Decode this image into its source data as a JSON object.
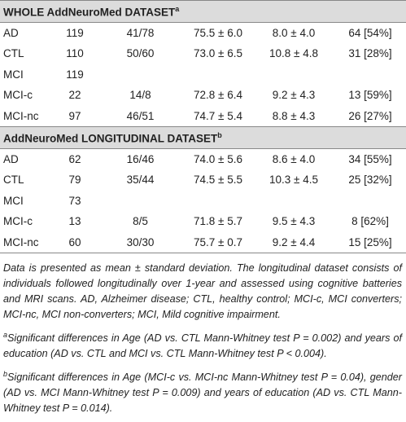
{
  "table": {
    "sections": [
      {
        "title": "WHOLE AddNeuroMed DATASET",
        "sup": "a",
        "rows": [
          [
            "AD",
            "119",
            "41/78",
            "75.5 ± 6.0",
            "8.0 ± 4.0",
            "64 [54%]"
          ],
          [
            "CTL",
            "110",
            "50/60",
            "73.0 ± 6.5",
            "10.8 ± 4.8",
            "31 [28%]"
          ],
          [
            "MCI",
            "119"
          ],
          [
            "MCI-c",
            "22",
            "14/8",
            "72.8 ± 6.4",
            "9.2 ± 4.3",
            "13 [59%]"
          ],
          [
            "MCI-nc",
            "97",
            "46/51",
            "74.7 ± 5.4",
            "8.8 ± 4.3",
            "26 [27%]"
          ]
        ]
      },
      {
        "title": "AddNeuroMed LONGITUDINAL DATASET",
        "sup": "b",
        "rows": [
          [
            "AD",
            "62",
            "16/46",
            "74.0 ± 5.6",
            "8.6 ± 4.0",
            "34 [55%]"
          ],
          [
            "CTL",
            "79",
            "35/44",
            "74.5 ± 5.5",
            "10.3 ± 4.5",
            "25 [32%]"
          ],
          [
            "MCI",
            "73"
          ],
          [
            "MCI-c",
            "13",
            "8/5",
            "71.8 ± 5.7",
            "9.5 ± 4.3",
            "8 [62%]"
          ],
          [
            "MCI-nc",
            "60",
            "30/30",
            "75.7 ± 0.7",
            "9.2 ± 4.4",
            "15 [25%]"
          ]
        ]
      }
    ]
  },
  "note": "Data is presented as mean ± standard deviation. The longitudinal dataset consists of individuals followed longitudinally over 1-year and assessed using cognitive batteries and MRI scans. AD, Alzheimer disease; CTL, healthy control; MCI-c, MCI converters; MCI-nc, MCI non-converters; MCI, Mild cognitive impairment.",
  "footnotes": [
    {
      "mark": "a",
      "text": "Significant differences in Age (AD vs. CTL Mann-Whitney test P = 0.002) and years of education (AD vs. CTL and MCI vs. CTL Mann-Whitney test P < 0.004)."
    },
    {
      "mark": "b",
      "text": "Significant differences in Age (MCI-c vs. MCI-nc Mann-Whitney test P = 0.04), gender (AD vs. MCI Mann-Whitney test P = 0.009) and years of education (AD vs. CTL Mann-Whitney test P = 0.014)."
    }
  ]
}
